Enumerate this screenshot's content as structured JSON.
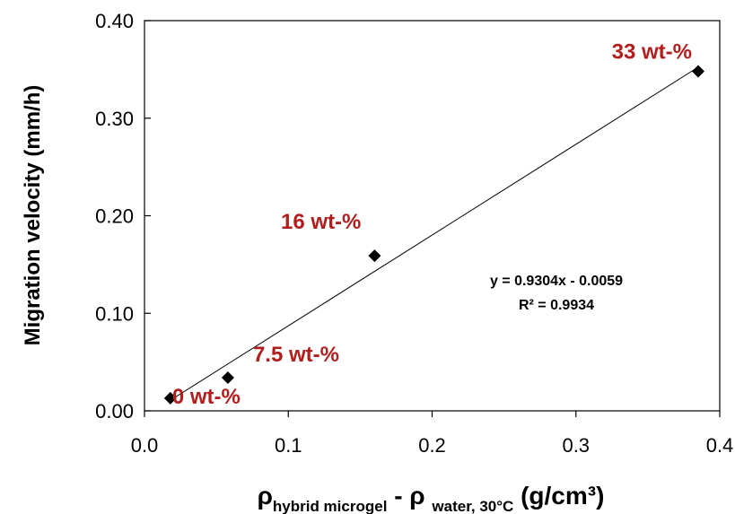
{
  "chart_data": {
    "type": "scatter",
    "xlabel": {
      "main1": "ρ",
      "sub1": "hybrid microgel",
      "mid": " - ρ ",
      "sub2": "water, 30°C",
      "tail": " (g/cm³)"
    },
    "ylabel": "Migration velocity (mm/h)",
    "xlim": [
      0.0,
      0.4
    ],
    "ylim": [
      0.0,
      0.4
    ],
    "x_ticks": [
      "0.0",
      "0.1",
      "0.2",
      "0.3",
      "0.4"
    ],
    "y_ticks": [
      "0.00",
      "0.10",
      "0.20",
      "0.30",
      "0.40"
    ],
    "x_tick_values": [
      0.0,
      0.1,
      0.2,
      0.3,
      0.4
    ],
    "y_tick_values": [
      0.0,
      0.1,
      0.2,
      0.3,
      0.4
    ],
    "grid": false,
    "series": [
      {
        "points": [
          {
            "x": 0.018,
            "y": 0.013,
            "label": "0 wt-%"
          },
          {
            "x": 0.058,
            "y": 0.034,
            "label": "7.5 wt-%"
          },
          {
            "x": 0.16,
            "y": 0.159,
            "label": "16 wt-%"
          },
          {
            "x": 0.385,
            "y": 0.348,
            "label": "33 wt-%"
          }
        ],
        "marker": "diamond",
        "color": "#000000"
      }
    ],
    "trendline": {
      "slope": 0.9304,
      "intercept": -0.0059,
      "x_range": [
        0.018,
        0.385
      ],
      "equation": "y = 0.9304x - 0.0059",
      "r2": "R² = 0.9934"
    },
    "annotation_color": "#B01E1E"
  }
}
